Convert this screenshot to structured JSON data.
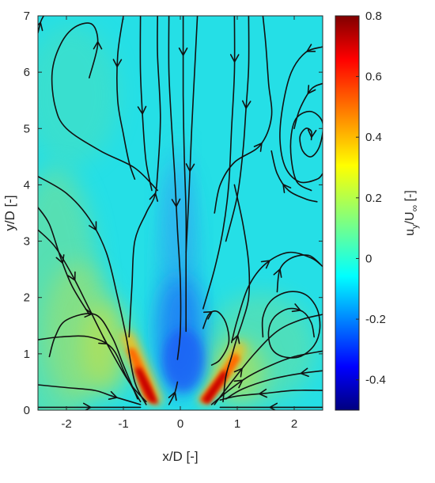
{
  "chart_data": {
    "type": "heatmap",
    "title": "",
    "xlabel": "x/D [-]",
    "ylabel": "y/D [-]",
    "colorbar_label_main": "u",
    "colorbar_label_sub": "y",
    "colorbar_label_sep": "/U",
    "colorbar_label_sub2": "∞",
    "colorbar_label_unit": " [-]",
    "xlim": [
      -2.5,
      2.5
    ],
    "ylim": [
      0,
      7
    ],
    "clim": [
      -0.5,
      0.8
    ],
    "colormap": "jet",
    "xticks": [
      "-2",
      "-1",
      "0",
      "1",
      "2"
    ],
    "xtick_values": [
      -2,
      -1,
      0,
      1,
      2
    ],
    "yticks": [
      "0",
      "1",
      "2",
      "3",
      "4",
      "5",
      "6",
      "7"
    ],
    "ytick_values": [
      0,
      1,
      2,
      3,
      4,
      5,
      6,
      7
    ],
    "cticks": [
      "0.8",
      "0.6",
      "0.4",
      "0.2",
      "0",
      "-0.2",
      "-0.4"
    ],
    "ctick_values": [
      0.8,
      0.6,
      0.4,
      0.2,
      0,
      -0.2,
      -0.4
    ],
    "field_features": [
      {
        "x": -0.95,
        "y": 0.15,
        "value": 0.8
      },
      {
        "x": 0.6,
        "y": 0.15,
        "value": 0.8
      },
      {
        "x": 0.0,
        "y": 1.2,
        "value": -0.3
      }
    ],
    "streamlines": [
      {
        "points": [
          [
            -2.5,
            0.45
          ],
          [
            -2.0,
            0.4
          ],
          [
            -1.5,
            0.35
          ],
          [
            -1.2,
            0.25
          ],
          [
            -0.7,
            0.1
          ]
        ],
        "arrow_at": 0.75
      },
      {
        "points": [
          [
            -2.5,
            1.25
          ],
          [
            -2.1,
            1.3
          ],
          [
            -1.6,
            1.3
          ],
          [
            -1.2,
            1.1
          ],
          [
            -0.95,
            0.6
          ],
          [
            -0.7,
            0.15
          ]
        ],
        "arrow_at": 0.5
      },
      {
        "points": [
          [
            -2.3,
            0.95
          ],
          [
            -2.2,
            1.3
          ],
          [
            -2.0,
            1.6
          ],
          [
            -1.5,
            1.7
          ],
          [
            -1.2,
            1.3
          ],
          [
            -1.0,
            0.8
          ],
          [
            -0.75,
            0.2
          ]
        ],
        "arrow_at": 0.4
      },
      {
        "points": [
          [
            -2.5,
            4.15
          ],
          [
            -2.0,
            3.85
          ],
          [
            -1.6,
            3.4
          ],
          [
            -1.3,
            2.8
          ],
          [
            -1.1,
            2.0
          ],
          [
            -0.95,
            1.3
          ],
          [
            -0.8,
            0.5
          ],
          [
            -0.6,
            0.1
          ]
        ],
        "arrow_at": 0.3
      },
      {
        "points": [
          [
            -2.5,
            3.2
          ],
          [
            -2.2,
            2.9
          ],
          [
            -1.9,
            2.4
          ],
          [
            -1.6,
            1.8
          ],
          [
            -1.3,
            1.2
          ],
          [
            -0.9,
            0.5
          ],
          [
            -0.6,
            0.15
          ]
        ],
        "arrow_at": 0.3
      },
      {
        "points": [
          [
            -0.9,
            1.3
          ],
          [
            -0.85,
            2.2
          ],
          [
            -0.8,
            3.0
          ],
          [
            -0.6,
            3.5
          ],
          [
            -0.45,
            3.8
          ],
          [
            -0.4,
            4.2
          ],
          [
            -0.35,
            5.2
          ],
          [
            -0.4,
            6.3
          ],
          [
            -0.4,
            7.0
          ]
        ],
        "arrow_at": 0.45
      },
      {
        "points": [
          [
            -2.5,
            3.6
          ],
          [
            -2.3,
            3.3
          ],
          [
            -2.1,
            2.7
          ],
          [
            -1.9,
            2.2
          ],
          [
            -1.6,
            1.7
          ]
        ],
        "arrow_at": 0.5
      },
      {
        "points": [
          [
            -1.6,
            5.9
          ],
          [
            -1.45,
            6.5
          ],
          [
            -1.55,
            6.85
          ],
          [
            -1.85,
            6.8
          ],
          [
            -2.1,
            6.5
          ],
          [
            -2.25,
            6.0
          ],
          [
            -2.2,
            5.4
          ],
          [
            -2.0,
            5.0
          ],
          [
            -1.4,
            4.6
          ],
          [
            -0.8,
            4.3
          ],
          [
            -0.4,
            3.9
          ]
        ],
        "arrow_at": 0.12
      },
      {
        "points": [
          [
            -2.5,
            6.7
          ],
          [
            -2.45,
            6.9
          ],
          [
            -2.4,
            7.0
          ]
        ],
        "arrow_at": 0.5
      },
      {
        "points": [
          [
            -1.0,
            7.0
          ],
          [
            -1.1,
            6.3
          ],
          [
            -1.1,
            5.5
          ],
          [
            -1.0,
            4.9
          ],
          [
            -0.9,
            4.4
          ],
          [
            -0.8,
            4.1
          ]
        ],
        "arrow_at": 0.3
      },
      {
        "points": [
          [
            -0.7,
            7.0
          ],
          [
            -0.7,
            6.0
          ],
          [
            -0.65,
            5.0
          ],
          [
            -0.6,
            4.4
          ],
          [
            -0.5,
            3.9
          ]
        ],
        "arrow_at": 0.55
      },
      {
        "points": [
          [
            -0.2,
            7.0
          ],
          [
            -0.2,
            6.0
          ],
          [
            -0.15,
            5.0
          ],
          [
            -0.1,
            4.2
          ],
          [
            -0.05,
            3.2
          ],
          [
            0.0,
            2.3
          ],
          [
            0.0,
            1.4
          ],
          [
            -0.05,
            0.9
          ]
        ],
        "arrow_at": 0.55
      },
      {
        "points": [
          [
            0.05,
            7.0
          ],
          [
            0.05,
            6.5
          ],
          [
            0.05,
            5.6
          ],
          [
            0.07,
            4.5
          ],
          [
            0.1,
            3.5
          ],
          [
            0.1,
            2.5
          ],
          [
            0.1,
            1.4
          ]
        ],
        "arrow_at": 0.12
      },
      {
        "points": [
          [
            0.3,
            7.0
          ],
          [
            0.25,
            6.0
          ],
          [
            0.2,
            5.0
          ],
          [
            0.15,
            3.8
          ],
          [
            0.1,
            2.8
          ]
        ],
        "arrow_at": 0.65
      },
      {
        "points": [
          [
            0.95,
            7.0
          ],
          [
            0.95,
            6.0
          ],
          [
            0.9,
            5.0
          ],
          [
            0.85,
            4.0
          ],
          [
            0.75,
            3.2
          ],
          [
            0.6,
            2.5
          ],
          [
            0.4,
            1.8
          ]
        ],
        "arrow_at": 0.15
      },
      {
        "points": [
          [
            1.2,
            7.0
          ],
          [
            1.2,
            6.1
          ],
          [
            1.15,
            5.3
          ],
          [
            1.1,
            4.6
          ],
          [
            1.0,
            3.8
          ],
          [
            0.8,
            3.0
          ]
        ],
        "arrow_at": 0.4
      },
      {
        "points": [
          [
            0.75,
            0.15
          ],
          [
            0.8,
            0.6
          ],
          [
            0.9,
            0.95
          ],
          [
            1.0,
            1.3
          ],
          [
            1.1,
            1.6
          ],
          [
            1.2,
            2.0
          ],
          [
            1.2,
            2.6
          ],
          [
            1.1,
            3.3
          ],
          [
            0.95,
            4.0
          ]
        ],
        "arrow_at": 0.3
      },
      {
        "points": [
          [
            0.6,
            0.1
          ],
          [
            0.9,
            0.5
          ],
          [
            1.3,
            1.0
          ],
          [
            1.7,
            1.4
          ],
          [
            2.1,
            1.6
          ],
          [
            2.5,
            1.7
          ]
        ],
        "arrow_at": 0.3
      },
      {
        "points": [
          [
            0.55,
            0.1
          ],
          [
            0.85,
            0.35
          ],
          [
            1.2,
            0.6
          ],
          [
            1.6,
            0.8
          ],
          [
            2.0,
            0.95
          ],
          [
            2.5,
            1.05
          ]
        ],
        "arrow_at": 0.3
      },
      {
        "points": [
          [
            2.5,
            0.35
          ],
          [
            2.0,
            0.35
          ],
          [
            1.5,
            0.3
          ],
          [
            1.0,
            0.25
          ],
          [
            0.7,
            0.18
          ]
        ],
        "arrow_at": 0.6
      },
      {
        "points": [
          [
            2.5,
            0.7
          ],
          [
            2.1,
            0.65
          ],
          [
            1.6,
            0.55
          ],
          [
            1.1,
            0.38
          ],
          [
            0.8,
            0.2
          ]
        ],
        "arrow_at": 0.2
      },
      {
        "points": [
          [
            0.9,
            1.2
          ],
          [
            1.0,
            1.6
          ],
          [
            1.2,
            2.2
          ],
          [
            1.5,
            2.6
          ],
          [
            1.9,
            2.8
          ],
          [
            2.3,
            2.7
          ],
          [
            2.5,
            2.55
          ]
        ],
        "arrow_at": 0.6
      },
      {
        "points": [
          [
            1.45,
            1.3
          ],
          [
            1.45,
            1.65
          ],
          [
            1.6,
            1.95
          ],
          [
            1.9,
            2.1
          ],
          [
            2.2,
            2.05
          ],
          [
            2.4,
            1.8
          ],
          [
            2.45,
            1.45
          ],
          [
            2.35,
            1.15
          ],
          [
            2.1,
            0.95
          ],
          [
            1.8,
            0.95
          ],
          [
            1.6,
            1.1
          ],
          [
            1.55,
            1.4
          ],
          [
            1.65,
            1.65
          ],
          [
            1.9,
            1.8
          ],
          [
            2.15,
            1.75
          ],
          [
            2.3,
            1.55
          ],
          [
            2.35,
            1.3
          ]
        ],
        "arrow_at": 0.88
      },
      {
        "points": [
          [
            0.4,
            1.45
          ],
          [
            0.5,
            1.7
          ],
          [
            0.65,
            1.75
          ],
          [
            0.8,
            1.55
          ],
          [
            0.85,
            1.2
          ],
          [
            0.7,
            0.9
          ],
          [
            0.55,
            0.8
          ]
        ],
        "arrow_at": 0.2
      },
      {
        "points": [
          [
            1.7,
            2.1
          ],
          [
            1.75,
            2.5
          ],
          [
            1.95,
            2.7
          ],
          [
            2.25,
            2.75
          ],
          [
            2.45,
            2.6
          ]
        ],
        "arrow_at": 0.3
      },
      {
        "points": [
          [
            2.5,
            6.45
          ],
          [
            2.2,
            6.35
          ],
          [
            1.95,
            6.0
          ],
          [
            1.8,
            5.4
          ],
          [
            1.75,
            4.8
          ],
          [
            1.85,
            4.3
          ],
          [
            2.1,
            4.05
          ],
          [
            2.4,
            4.1
          ],
          [
            2.5,
            4.2
          ]
        ],
        "arrow_at": 0.08
      },
      {
        "points": [
          [
            2.3,
            3.9
          ],
          [
            2.05,
            4.05
          ],
          [
            1.95,
            4.45
          ],
          [
            1.95,
            4.9
          ],
          [
            2.05,
            5.2
          ],
          [
            2.3,
            5.3
          ],
          [
            2.5,
            5.1
          ],
          [
            2.45,
            4.7
          ],
          [
            2.3,
            4.5
          ],
          [
            2.15,
            4.6
          ],
          [
            2.1,
            4.85
          ],
          [
            2.2,
            5.0
          ],
          [
            2.3,
            4.95
          ],
          [
            2.3,
            4.8
          ]
        ],
        "arrow_at": 0.98
      },
      {
        "points": [
          [
            2.5,
            5.8
          ],
          [
            2.3,
            5.7
          ],
          [
            2.1,
            5.35
          ],
          [
            2.0,
            5.0
          ]
        ],
        "arrow_at": 0.3
      },
      {
        "points": [
          [
            2.4,
            3.7
          ],
          [
            2.2,
            3.75
          ],
          [
            1.9,
            3.9
          ],
          [
            1.7,
            4.2
          ],
          [
            1.6,
            4.6
          ]
        ],
        "arrow_at": 0.5
      },
      {
        "points": [
          [
            0.6,
            3.5
          ],
          [
            0.7,
            4.0
          ],
          [
            0.95,
            4.4
          ],
          [
            1.4,
            4.7
          ],
          [
            1.6,
            5.2
          ],
          [
            1.55,
            5.8
          ],
          [
            1.5,
            6.5
          ],
          [
            1.45,
            7.0
          ]
        ],
        "arrow_at": 0.4
      },
      {
        "points": [
          [
            -2.5,
            0.05
          ],
          [
            -2.0,
            0.05
          ],
          [
            -1.5,
            0.05
          ],
          [
            -1.0,
            0.05
          ],
          [
            -0.7,
            0.05
          ]
        ],
        "arrow_at": 0.5
      },
      {
        "points": [
          [
            -0.2,
            0.1
          ],
          [
            -0.1,
            0.3
          ],
          [
            -0.05,
            0.5
          ]
        ],
        "arrow_at": 0.5
      },
      {
        "points": [
          [
            2.5,
            0.05
          ],
          [
            2.0,
            0.05
          ],
          [
            1.5,
            0.05
          ],
          [
            1.0,
            0.05
          ],
          [
            0.7,
            0.05
          ]
        ],
        "arrow_at": 0.5
      }
    ]
  }
}
